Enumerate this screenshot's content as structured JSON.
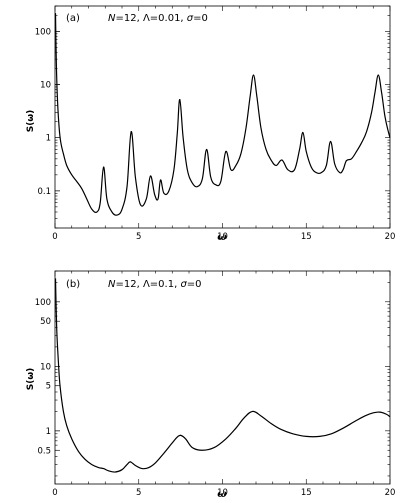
{
  "chart_data": [
    {
      "type": "line",
      "panel": "(a)",
      "annotation": "N=12, Λ=0.01, σ=0",
      "annotation_parts": {
        "n": "N",
        "n_val": "=12, Λ=0.01, ",
        "s": "σ",
        "s_val": "=0"
      },
      "xlabel": "ω",
      "ylabel": "S(ω)",
      "xlim": [
        0,
        20
      ],
      "ylim": [
        0.02,
        300
      ],
      "yscale": "log",
      "xticks": [
        0,
        5,
        10,
        15,
        20
      ],
      "xtick_labels": [
        "0",
        "5",
        "10",
        "15",
        "20"
      ],
      "yticks": [
        0.1,
        1,
        10,
        100
      ],
      "ytick_labels": [
        "0.1",
        "1",
        "10",
        "100"
      ],
      "grid": false,
      "peaks": [
        [
          2.9,
          0.28
        ],
        [
          4.55,
          1.3
        ],
        [
          5.7,
          0.19
        ],
        [
          6.3,
          0.16
        ],
        [
          7.45,
          5.2
        ],
        [
          9.05,
          0.6
        ],
        [
          10.2,
          0.55
        ],
        [
          11.85,
          15
        ],
        [
          13.55,
          0.38
        ],
        [
          14.8,
          1.25
        ],
        [
          16.45,
          0.85
        ],
        [
          17.4,
          0.37
        ],
        [
          19.3,
          15
        ]
      ],
      "series": [
        {
          "x": [
            0.03,
            0.08,
            0.15,
            0.25,
            0.35,
            0.5,
            0.7,
            1.0,
            1.3,
            1.6,
            1.9,
            2.2,
            2.5,
            2.7,
            2.9,
            3.1,
            3.4,
            3.7,
            4.0,
            4.3,
            4.55,
            4.8,
            5.1,
            5.45,
            5.7,
            5.95,
            6.15,
            6.3,
            6.5,
            6.8,
            7.1,
            7.3,
            7.45,
            7.65,
            7.9,
            8.2,
            8.5,
            8.8,
            9.05,
            9.3,
            9.6,
            9.9,
            10.2,
            10.5,
            10.8,
            11.1,
            11.4,
            11.65,
            11.85,
            12.05,
            12.3,
            12.6,
            12.9,
            13.2,
            13.55,
            13.9,
            14.3,
            14.6,
            14.8,
            15.0,
            15.3,
            15.6,
            15.9,
            16.2,
            16.45,
            16.7,
            17.0,
            17.2,
            17.4,
            17.7,
            18.0,
            18.3,
            18.6,
            18.9,
            19.1,
            19.3,
            19.5,
            19.7,
            19.9,
            20.0
          ],
          "y": [
            220,
            25,
            5,
            1.5,
            0.8,
            0.5,
            0.3,
            0.2,
            0.15,
            0.11,
            0.07,
            0.045,
            0.04,
            0.06,
            0.28,
            0.07,
            0.04,
            0.035,
            0.045,
            0.12,
            1.3,
            0.18,
            0.055,
            0.07,
            0.19,
            0.085,
            0.07,
            0.16,
            0.09,
            0.1,
            0.25,
            1.2,
            5.2,
            1.0,
            0.25,
            0.14,
            0.12,
            0.17,
            0.6,
            0.18,
            0.13,
            0.15,
            0.55,
            0.25,
            0.3,
            0.5,
            1.5,
            6.0,
            15,
            6.0,
            1.5,
            0.6,
            0.38,
            0.3,
            0.38,
            0.25,
            0.25,
            0.6,
            1.25,
            0.55,
            0.28,
            0.22,
            0.22,
            0.3,
            0.85,
            0.32,
            0.22,
            0.25,
            0.37,
            0.4,
            0.55,
            0.8,
            1.3,
            3.0,
            7.0,
            15,
            7.0,
            2.5,
            1.3,
            1.0
          ]
        }
      ]
    },
    {
      "type": "line",
      "panel": "(b)",
      "annotation": "N=12, Λ=0.1, σ=0",
      "annotation_parts": {
        "n": "N",
        "n_val": "=12, Λ=0.1, ",
        "s": "σ",
        "s_val": "=0"
      },
      "xlabel": "ω",
      "ylabel": "S(ω)",
      "xlim": [
        0,
        20
      ],
      "ylim": [
        0.15,
        300
      ],
      "yscale": "log",
      "xticks": [
        0,
        5,
        10,
        15,
        20
      ],
      "xtick_labels": [
        "0",
        "5",
        "10",
        "15",
        "20"
      ],
      "yticks": [
        0.5,
        1,
        5,
        10,
        50,
        100
      ],
      "ytick_labels": [
        "0.5",
        "1",
        "5",
        "10",
        "50",
        "100"
      ],
      "grid": false,
      "peaks": [
        [
          4.5,
          0.33
        ],
        [
          7.5,
          0.85
        ],
        [
          11.8,
          2.0
        ],
        [
          19.4,
          1.95
        ]
      ],
      "series": [
        {
          "x": [
            0.03,
            0.1,
            0.2,
            0.3,
            0.5,
            0.7,
            1.0,
            1.4,
            1.8,
            2.2,
            2.6,
            2.9,
            3.2,
            3.6,
            4.0,
            4.3,
            4.5,
            4.8,
            5.2,
            5.6,
            6.0,
            6.5,
            7.0,
            7.3,
            7.5,
            7.8,
            8.2,
            8.8,
            9.5,
            10.2,
            10.8,
            11.3,
            11.8,
            12.3,
            12.9,
            13.5,
            14.2,
            15.0,
            15.8,
            16.5,
            17.2,
            17.9,
            18.5,
            19.0,
            19.4,
            19.8,
            20.0
          ],
          "y": [
            230,
            40,
            12,
            5,
            2.0,
            1.2,
            0.75,
            0.48,
            0.36,
            0.3,
            0.27,
            0.26,
            0.24,
            0.23,
            0.25,
            0.3,
            0.33,
            0.29,
            0.26,
            0.27,
            0.32,
            0.45,
            0.65,
            0.8,
            0.85,
            0.75,
            0.55,
            0.5,
            0.55,
            0.75,
            1.1,
            1.6,
            2.0,
            1.7,
            1.3,
            1.05,
            0.9,
            0.82,
            0.82,
            0.9,
            1.1,
            1.4,
            1.7,
            1.9,
            1.95,
            1.8,
            1.65
          ]
        }
      ]
    }
  ]
}
